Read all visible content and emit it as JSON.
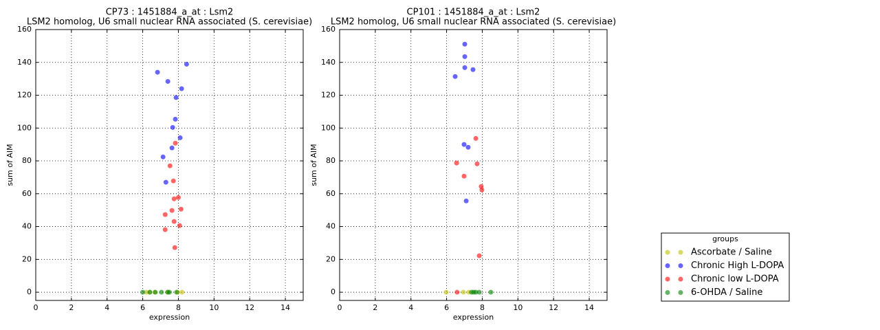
{
  "chart_data": [
    {
      "type": "scatter",
      "title": "CP73 : 1451884_a_at : Lsm2",
      "subtitle": "LSM2 homolog, U6 small nuclear RNA associated (S. cerevisiae)",
      "x_label": "expression",
      "y_label": "sum of AIM",
      "xlim": [
        0,
        15
      ],
      "xticks": [
        0,
        2,
        4,
        6,
        8,
        10,
        12,
        14
      ],
      "ylim": [
        -5,
        160
      ],
      "yticks": [
        0,
        20,
        40,
        60,
        80,
        100,
        120,
        140,
        160
      ],
      "grid": true,
      "series": [
        {
          "name": "Ascorbate / Saline",
          "color": "#bfbf00",
          "x": [
            6.2,
            6.4,
            6.7,
            7.4,
            7.95,
            8.2
          ],
          "values": [
            0,
            0,
            0,
            0,
            0,
            0
          ]
        },
        {
          "name": "Chronic High L-DOPA",
          "color": "#0000ff",
          "x": [
            6.83,
            7.41,
            8.46,
            8.18,
            7.87,
            7.83,
            7.68,
            8.1,
            7.64,
            7.14,
            7.3
          ],
          "values": [
            134,
            128.4,
            138.9,
            124,
            118.6,
            105.4,
            100.4,
            94.1,
            87.9,
            82.4,
            67
          ]
        },
        {
          "name": "Chronic low L-DOPA",
          "color": "#ff0000",
          "x": [
            7.83,
            7.53,
            7.72,
            8.0,
            7.76,
            8.15,
            7.64,
            7.26,
            7.76,
            8.07,
            7.26,
            7.8
          ],
          "values": [
            90.8,
            77,
            67.8,
            57.7,
            56.9,
            50.6,
            49.8,
            47.3,
            43.1,
            40.6,
            38.1,
            27.2
          ]
        },
        {
          "name": "6-OHDA / Saline",
          "color": "#008000",
          "x": [
            6.0,
            6.4,
            6.7,
            7.05,
            7.4,
            7.5,
            7.9
          ],
          "values": [
            0,
            0,
            0,
            0,
            0,
            0,
            0
          ]
        }
      ]
    },
    {
      "type": "scatter",
      "title": "CP101 : 1451884_a_at : Lsm2",
      "subtitle": "LSM2 homolog, U6 small nuclear RNA associated (S. cerevisiae)",
      "x_label": "expression",
      "y_label": "sum of AIM",
      "xlim": [
        0,
        15
      ],
      "xticks": [
        0,
        2,
        4,
        6,
        8,
        10,
        12,
        14
      ],
      "ylim": [
        -5,
        160
      ],
      "yticks": [
        0,
        20,
        40,
        60,
        80,
        100,
        120,
        140,
        160
      ],
      "grid": true,
      "legend": "right",
      "legend_title": "groups",
      "series": [
        {
          "name": "Ascorbate / Saline",
          "color": "#bfbf00",
          "x": [
            5.98,
            6.94,
            7.25
          ],
          "values": [
            0,
            0,
            0
          ]
        },
        {
          "name": "Chronic High L-DOPA",
          "color": "#0000ff",
          "x": [
            7.02,
            7.02,
            7.02,
            7.48,
            6.48,
            6.98,
            7.21,
            7.1
          ],
          "values": [
            151.1,
            143.5,
            136.8,
            135.6,
            131.4,
            90,
            88.3,
            55.6
          ]
        },
        {
          "name": "Chronic low L-DOPA",
          "color": "#ff0000",
          "x": [
            7.64,
            6.56,
            7.71,
            6.98,
            7.94,
            7.98,
            7.83,
            6.59
          ],
          "values": [
            93.7,
            78.7,
            78.2,
            70.7,
            64.4,
            62.3,
            22.2,
            0
          ]
        },
        {
          "name": "6-OHDA / Saline",
          "color": "#008000",
          "x": [
            7.4,
            7.52,
            7.64,
            7.83,
            8.48
          ],
          "values": [
            0,
            0,
            0,
            0,
            0
          ]
        }
      ]
    }
  ]
}
